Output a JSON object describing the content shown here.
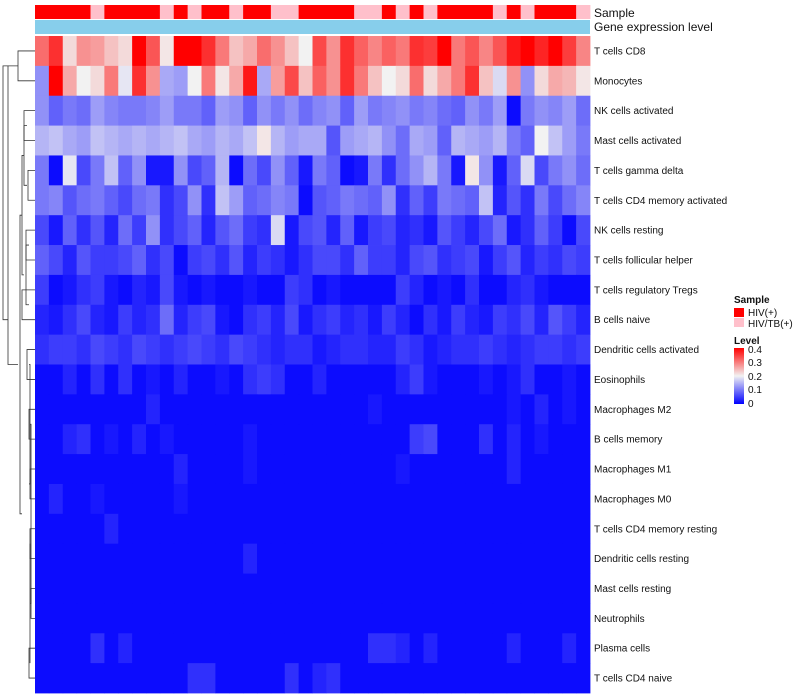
{
  "chart_data": {
    "type": "heatmap",
    "n_samples": 40,
    "annotations": [
      {
        "name": "Sample",
        "label": "Sample"
      },
      {
        "name": "Gene expression level",
        "label": "Gene expression level"
      }
    ],
    "sample_groups": [
      "HIV(+)",
      "HIV(+)",
      "HIV(+)",
      "HIV(+)",
      "HIV/TB(+)",
      "HIV(+)",
      "HIV(+)",
      "HIV(+)",
      "HIV(+)",
      "HIV/TB(+)",
      "HIV(+)",
      "HIV/TB(+)",
      "HIV(+)",
      "HIV(+)",
      "HIV/TB(+)",
      "HIV(+)",
      "HIV(+)",
      "HIV/TB(+)",
      "HIV/TB(+)",
      "HIV(+)",
      "HIV(+)",
      "HIV(+)",
      "HIV(+)",
      "HIV/TB(+)",
      "HIV/TB(+)",
      "HIV(+)",
      "HIV/TB(+)",
      "HIV(+)",
      "HIV/TB(+)",
      "HIV(+)",
      "HIV(+)",
      "HIV(+)",
      "HIV(+)",
      "HIV/TB(+)",
      "HIV(+)",
      "HIV/TB(+)",
      "HIV(+)",
      "HIV(+)",
      "HIV(+)",
      "HIV/TB(+)"
    ],
    "rows": [
      "T cells CD8",
      "Monocytes",
      "NK cells activated",
      "Mast cells activated",
      "T cells gamma delta",
      "T cells CD4 memory activated",
      "NK cells resting",
      "T cells follicular helper",
      "T cells regulatory  Tregs",
      "B cells naive",
      "Dendritic cells activated",
      "Eosinophils",
      "Macrophages M2",
      "B cells memory",
      "Macrophages M1",
      "Macrophages M0",
      "T cells CD4 memory resting",
      "Dendritic cells resting",
      "Mast cells resting",
      "Neutrophils",
      "Plasma cells",
      "T cells CD4 naive"
    ],
    "values": [
      [
        0.31,
        0.36,
        0.22,
        0.28,
        0.27,
        0.24,
        0.22,
        0.42,
        0.33,
        0.21,
        0.42,
        0.42,
        0.36,
        0.3,
        0.24,
        0.26,
        0.31,
        0.28,
        0.24,
        0.2,
        0.34,
        0.28,
        0.36,
        0.32,
        0.29,
        0.32,
        0.3,
        0.36,
        0.35,
        0.4,
        0.3,
        0.33,
        0.29,
        0.33,
        0.38,
        0.4,
        0.37,
        0.4,
        0.35,
        0.29
      ],
      [
        0.12,
        0.4,
        0.26,
        0.2,
        0.22,
        0.3,
        0.19,
        0.36,
        0.28,
        0.14,
        0.13,
        0.2,
        0.3,
        0.21,
        0.26,
        0.38,
        0.14,
        0.27,
        0.34,
        0.24,
        0.32,
        0.28,
        0.36,
        0.3,
        0.24,
        0.2,
        0.22,
        0.31,
        0.22,
        0.26,
        0.3,
        0.36,
        0.24,
        0.18,
        0.28,
        0.12,
        0.22,
        0.26,
        0.25,
        0.21
      ],
      [
        0.12,
        0.08,
        0.1,
        0.09,
        0.13,
        0.11,
        0.1,
        0.1,
        0.11,
        0.13,
        0.1,
        0.1,
        0.08,
        0.13,
        0.12,
        0.08,
        0.12,
        0.1,
        0.12,
        0.09,
        0.11,
        0.12,
        0.08,
        0.13,
        0.1,
        0.11,
        0.12,
        0.1,
        0.11,
        0.09,
        0.08,
        0.12,
        0.1,
        0.13,
        0.01,
        0.1,
        0.12,
        0.11,
        0.13,
        0.09
      ],
      [
        0.15,
        0.16,
        0.14,
        0.13,
        0.16,
        0.15,
        0.14,
        0.15,
        0.14,
        0.15,
        0.16,
        0.14,
        0.13,
        0.15,
        0.14,
        0.16,
        0.21,
        0.15,
        0.13,
        0.14,
        0.14,
        0.07,
        0.13,
        0.14,
        0.15,
        0.12,
        0.09,
        0.14,
        0.13,
        0.08,
        0.15,
        0.14,
        0.13,
        0.15,
        0.1,
        0.08,
        0.2,
        0.16,
        0.13,
        0.1
      ],
      [
        0.1,
        0.01,
        0.19,
        0.06,
        0.1,
        0.16,
        0.08,
        0.12,
        0.02,
        0.02,
        0.12,
        0.06,
        0.08,
        0.15,
        0.01,
        0.09,
        0.06,
        0.12,
        0.08,
        0.02,
        0.1,
        0.08,
        0.01,
        0.02,
        0.1,
        0.04,
        0.09,
        0.12,
        0.15,
        0.1,
        0.02,
        0.21,
        0.12,
        0.02,
        0.08,
        0.18,
        0.06,
        0.1,
        0.12,
        0.09
      ],
      [
        0.1,
        0.11,
        0.07,
        0.09,
        0.1,
        0.08,
        0.06,
        0.09,
        0.1,
        0.04,
        0.06,
        0.12,
        0.04,
        0.16,
        0.13,
        0.08,
        0.09,
        0.11,
        0.1,
        0.01,
        0.07,
        0.08,
        0.1,
        0.09,
        0.08,
        0.12,
        0.04,
        0.08,
        0.05,
        0.1,
        0.09,
        0.08,
        0.16,
        0.03,
        0.07,
        0.04,
        0.1,
        0.06,
        0.09,
        0.11
      ],
      [
        0.06,
        0.02,
        0.08,
        0.04,
        0.07,
        0.03,
        0.09,
        0.05,
        0.12,
        0.04,
        0.06,
        0.08,
        0.03,
        0.07,
        0.09,
        0.05,
        0.04,
        0.18,
        0.02,
        0.06,
        0.07,
        0.03,
        0.08,
        0.02,
        0.05,
        0.06,
        0.03,
        0.04,
        0.02,
        0.07,
        0.05,
        0.03,
        0.06,
        0.09,
        0.02,
        0.04,
        0.08,
        0.05,
        0.01,
        0.06
      ],
      [
        0.08,
        0.06,
        0.03,
        0.07,
        0.05,
        0.05,
        0.06,
        0.08,
        0.04,
        0.06,
        0.01,
        0.05,
        0.06,
        0.04,
        0.07,
        0.03,
        0.05,
        0.04,
        0.02,
        0.04,
        0.06,
        0.06,
        0.04,
        0.08,
        0.05,
        0.05,
        0.03,
        0.06,
        0.07,
        0.04,
        0.05,
        0.06,
        0.02,
        0.05,
        0.07,
        0.03,
        0.05,
        0.04,
        0.06,
        0.05
      ],
      [
        0.05,
        0.01,
        0.02,
        0.04,
        0.05,
        0.02,
        0.01,
        0.03,
        0.02,
        0.06,
        0.02,
        0.01,
        0.02,
        0.01,
        0.01,
        0.02,
        0.01,
        0.01,
        0.05,
        0.04,
        0.01,
        0.02,
        0.01,
        0.01,
        0.01,
        0.01,
        0.05,
        0.03,
        0.01,
        0.02,
        0.01,
        0.04,
        0.01,
        0.01,
        0.03,
        0.04,
        0.02,
        0.01,
        0.01,
        0.01
      ],
      [
        0.03,
        0.02,
        0.04,
        0.06,
        0.03,
        0.02,
        0.05,
        0.03,
        0.04,
        0.09,
        0.03,
        0.05,
        0.06,
        0.02,
        0.01,
        0.04,
        0.05,
        0.03,
        0.06,
        0.02,
        0.04,
        0.05,
        0.03,
        0.04,
        0.02,
        0.05,
        0.03,
        0.01,
        0.04,
        0.02,
        0.05,
        0.03,
        0.02,
        0.05,
        0.04,
        0.06,
        0.03,
        0.07,
        0.05,
        0.03
      ],
      [
        0.04,
        0.05,
        0.05,
        0.04,
        0.06,
        0.05,
        0.04,
        0.06,
        0.05,
        0.04,
        0.05,
        0.06,
        0.05,
        0.04,
        0.06,
        0.05,
        0.04,
        0.03,
        0.04,
        0.04,
        0.02,
        0.03,
        0.04,
        0.04,
        0.03,
        0.03,
        0.05,
        0.04,
        0.02,
        0.03,
        0.04,
        0.04,
        0.05,
        0.04,
        0.03,
        0.04,
        0.05,
        0.05,
        0.04,
        0.05
      ],
      [
        0.01,
        0.01,
        0.03,
        0.01,
        0.04,
        0.01,
        0.04,
        0.01,
        0.02,
        0.01,
        0.03,
        0.01,
        0.01,
        0.02,
        0.01,
        0.04,
        0.05,
        0.04,
        0.01,
        0.01,
        0.03,
        0.01,
        0.01,
        0.01,
        0.01,
        0.01,
        0.03,
        0.05,
        0.02,
        0.01,
        0.01,
        0.01,
        0.02,
        0.01,
        0.02,
        0.04,
        0.01,
        0.01,
        0.02,
        0.01
      ],
      [
        0.01,
        0.01,
        0.01,
        0.01,
        0.01,
        0.01,
        0.01,
        0.01,
        0.03,
        0.01,
        0.01,
        0.01,
        0.01,
        0.01,
        0.01,
        0.01,
        0.01,
        0.01,
        0.01,
        0.01,
        0.01,
        0.01,
        0.01,
        0.01,
        0.02,
        0.01,
        0.01,
        0.01,
        0.01,
        0.01,
        0.01,
        0.01,
        0.01,
        0.01,
        0.02,
        0.01,
        0.03,
        0.01,
        0.02,
        0.01
      ],
      [
        0.01,
        0.01,
        0.03,
        0.04,
        0.01,
        0.02,
        0.01,
        0.03,
        0.01,
        0.02,
        0.01,
        0.01,
        0.01,
        0.01,
        0.01,
        0.02,
        0.01,
        0.01,
        0.01,
        0.01,
        0.01,
        0.01,
        0.01,
        0.01,
        0.01,
        0.01,
        0.01,
        0.05,
        0.06,
        0.01,
        0.01,
        0.01,
        0.04,
        0.01,
        0.03,
        0.01,
        0.02,
        0.01,
        0.01,
        0.01
      ],
      [
        0.01,
        0.01,
        0.01,
        0.01,
        0.01,
        0.01,
        0.01,
        0.01,
        0.01,
        0.01,
        0.03,
        0.01,
        0.01,
        0.01,
        0.01,
        0.02,
        0.01,
        0.01,
        0.01,
        0.01,
        0.01,
        0.01,
        0.01,
        0.01,
        0.01,
        0.01,
        0.02,
        0.01,
        0.01,
        0.01,
        0.01,
        0.01,
        0.01,
        0.01,
        0.03,
        0.01,
        0.01,
        0.01,
        0.01,
        0.01
      ],
      [
        0.01,
        0.03,
        0.01,
        0.01,
        0.02,
        0.01,
        0.01,
        0.01,
        0.01,
        0.01,
        0.02,
        0.01,
        0.01,
        0.01,
        0.01,
        0.01,
        0.01,
        0.01,
        0.01,
        0.01,
        0.01,
        0.01,
        0.01,
        0.01,
        0.01,
        0.01,
        0.01,
        0.01,
        0.01,
        0.01,
        0.01,
        0.01,
        0.01,
        0.01,
        0.01,
        0.01,
        0.01,
        0.01,
        0.01,
        0.01
      ],
      [
        0.01,
        0.01,
        0.01,
        0.01,
        0.01,
        0.03,
        0.01,
        0.01,
        0.01,
        0.01,
        0.01,
        0.01,
        0.01,
        0.01,
        0.01,
        0.01,
        0.01,
        0.01,
        0.01,
        0.01,
        0.01,
        0.01,
        0.01,
        0.01,
        0.01,
        0.01,
        0.01,
        0.01,
        0.01,
        0.01,
        0.01,
        0.01,
        0.01,
        0.01,
        0.01,
        0.01,
        0.01,
        0.01,
        0.01,
        0.01
      ],
      [
        0.01,
        0.01,
        0.01,
        0.01,
        0.01,
        0.01,
        0.01,
        0.01,
        0.01,
        0.01,
        0.01,
        0.01,
        0.01,
        0.01,
        0.01,
        0.03,
        0.01,
        0.01,
        0.01,
        0.01,
        0.01,
        0.01,
        0.01,
        0.01,
        0.01,
        0.01,
        0.01,
        0.01,
        0.01,
        0.01,
        0.01,
        0.01,
        0.01,
        0.01,
        0.01,
        0.01,
        0.01,
        0.01,
        0.01,
        0.01
      ],
      [
        0.01,
        0.01,
        0.01,
        0.01,
        0.01,
        0.01,
        0.01,
        0.01,
        0.01,
        0.01,
        0.01,
        0.01,
        0.01,
        0.01,
        0.01,
        0.01,
        0.01,
        0.01,
        0.01,
        0.01,
        0.01,
        0.01,
        0.01,
        0.01,
        0.01,
        0.01,
        0.01,
        0.01,
        0.01,
        0.01,
        0.01,
        0.01,
        0.01,
        0.01,
        0.01,
        0.01,
        0.01,
        0.01,
        0.01,
        0.01
      ],
      [
        0.01,
        0.01,
        0.01,
        0.01,
        0.01,
        0.01,
        0.01,
        0.01,
        0.01,
        0.01,
        0.01,
        0.01,
        0.01,
        0.01,
        0.01,
        0.01,
        0.01,
        0.01,
        0.01,
        0.01,
        0.01,
        0.01,
        0.01,
        0.01,
        0.01,
        0.01,
        0.01,
        0.01,
        0.01,
        0.01,
        0.01,
        0.01,
        0.01,
        0.01,
        0.01,
        0.01,
        0.01,
        0.01,
        0.01,
        0.01
      ],
      [
        0.01,
        0.01,
        0.01,
        0.01,
        0.04,
        0.01,
        0.03,
        0.01,
        0.01,
        0.01,
        0.01,
        0.01,
        0.01,
        0.01,
        0.01,
        0.01,
        0.01,
        0.01,
        0.01,
        0.01,
        0.01,
        0.01,
        0.01,
        0.01,
        0.04,
        0.04,
        0.03,
        0.01,
        0.03,
        0.01,
        0.01,
        0.01,
        0.01,
        0.01,
        0.03,
        0.01,
        0.01,
        0.01,
        0.03,
        0.01
      ],
      [
        0.01,
        0.01,
        0.01,
        0.01,
        0.01,
        0.01,
        0.01,
        0.01,
        0.01,
        0.01,
        0.01,
        0.04,
        0.04,
        0.01,
        0.01,
        0.01,
        0.01,
        0.01,
        0.04,
        0.01,
        0.03,
        0.04,
        0.01,
        0.01,
        0.01,
        0.01,
        0.01,
        0.01,
        0.01,
        0.01,
        0.01,
        0.01,
        0.01,
        0.01,
        0.01,
        0.01,
        0.01,
        0.01,
        0.01,
        0.01
      ]
    ],
    "legend": {
      "sample": {
        "title": "Sample",
        "entries": [
          {
            "label": "HIV(+)",
            "color": "#ff0000"
          },
          {
            "label": "HIV/TB(+)",
            "color": "#ffc0cb"
          }
        ]
      },
      "level": {
        "title": "Level",
        "ticks": [
          "0.4",
          "0.3",
          "0.2",
          "0.1",
          "0"
        ],
        "range": [
          0,
          0.4
        ]
      }
    },
    "colors": {
      "low": "#0000ff",
      "mid": "#f2f2f2",
      "high": "#ff0000",
      "annotation_bar": "#87ceeb"
    }
  }
}
